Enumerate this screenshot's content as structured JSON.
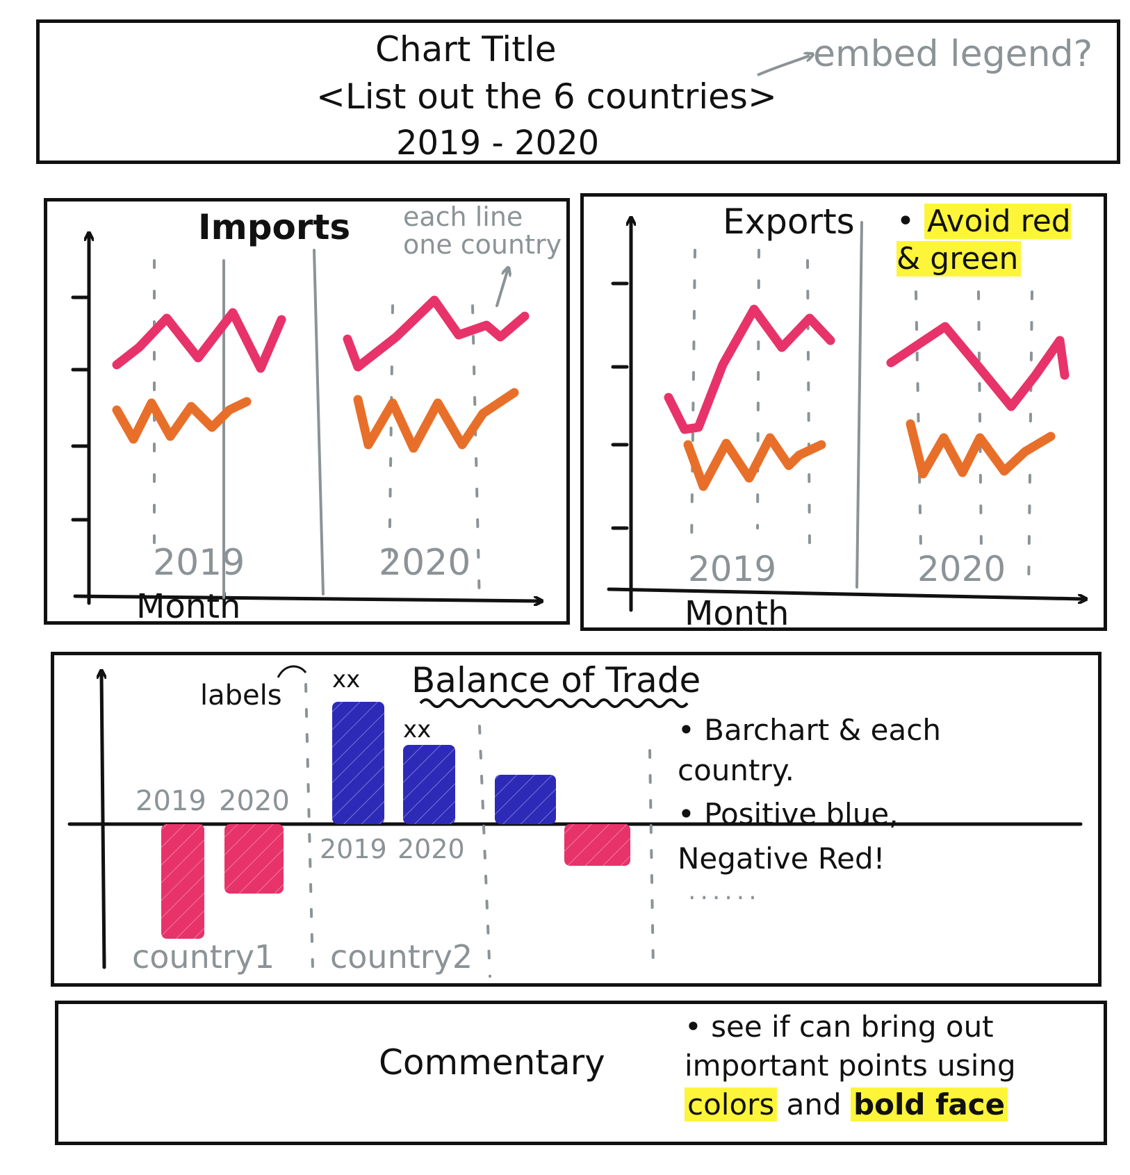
{
  "colors": {
    "ink": "#111111",
    "note_gray": "#8b9397",
    "pink": "#e7336a",
    "orange": "#e86f2a",
    "blue": "#2e2ab8",
    "highlight": "#fdf53a"
  },
  "header": {
    "title": "Chart Title",
    "subtitle": "<List out the 6 countries>",
    "years": "2019 - 2020",
    "note": "embed legend?"
  },
  "imports": {
    "title": "Imports",
    "note": "each line one country",
    "year_labels": [
      "2019",
      "2020"
    ],
    "xlabel": "Month"
  },
  "exports": {
    "title": "Exports",
    "note": "Avoid red & green",
    "year_labels": [
      "2019",
      "2020"
    ],
    "xlabel": "Month"
  },
  "balance": {
    "title": "Balance of Trade",
    "labels_note": "labels",
    "value_label_1": "xx",
    "value_label_2": "xx",
    "year_labels": [
      "2019",
      "2020",
      "2019",
      "2020"
    ],
    "countries": [
      "country1",
      "country2"
    ],
    "notes": [
      "Barchart & each country.",
      "Positive blue, Negative Red!"
    ],
    "ellipsis": "......"
  },
  "commentary": {
    "title": "Commentary",
    "note_plain_1": "see if can bring out important points using",
    "note_hl_1": "colors",
    "note_mid": "and",
    "note_hl_2": "bold face"
  }
}
